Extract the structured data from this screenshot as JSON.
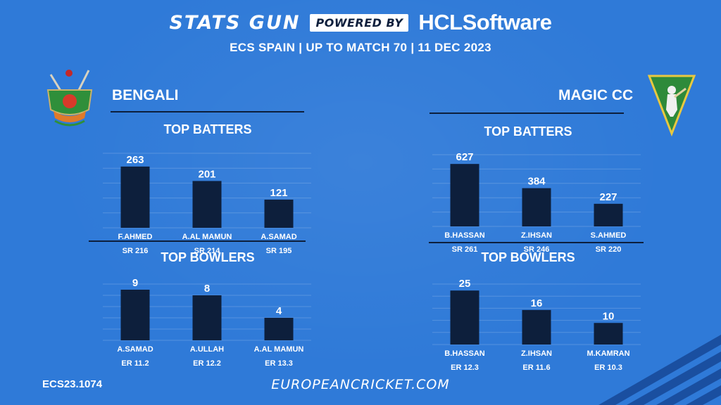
{
  "header": {
    "stats_brand": "STATS GUN",
    "powered_by": "POWERED BY",
    "sponsor": "HCLSoftware",
    "subtitle": "ECS SPAIN | UP TO MATCH 70 | 11 DEC 2023"
  },
  "teams": {
    "left": {
      "name": "BENGALI",
      "logo_icon": "bengali-cricket-club-logo"
    },
    "right": {
      "name": "MAGIC CC",
      "logo_icon": "magic-badalona-cc-logo"
    }
  },
  "footer": {
    "code": "ECS23.1074",
    "url": "EUROPEANCRICKET.COM"
  },
  "colors": {
    "background": "#2f7ad8",
    "bar": "#0d1f3c",
    "text": "#ffffff"
  },
  "chart_data": [
    {
      "id": "left-batters",
      "type": "bar",
      "title": "TOP BATTERS",
      "categories": [
        "F.AHMED",
        "A.AL MAMUN",
        "A.SAMAD"
      ],
      "values": [
        263,
        201,
        121
      ],
      "sublabels": [
        "SR 216",
        "SR 214",
        "SR 195"
      ],
      "data_labels": [
        "263",
        "201",
        "121"
      ],
      "ylim": [
        0,
        320
      ],
      "grid": true
    },
    {
      "id": "right-batters",
      "type": "bar",
      "title": "TOP BATTERS",
      "categories": [
        "B.HASSAN",
        "Z.IHSAN",
        "S.AHMED"
      ],
      "values": [
        627,
        384,
        227
      ],
      "sublabels": [
        "SR 261",
        "SR 246",
        "SR 220"
      ],
      "data_labels": [
        "627",
        "384",
        "227"
      ],
      "ylim": [
        0,
        720
      ],
      "grid": true
    },
    {
      "id": "left-bowlers",
      "type": "bar",
      "title": "TOP BOWLERS",
      "categories": [
        "A.SAMAD",
        "A.ULLAH",
        "A.AL MAMUN"
      ],
      "values": [
        9,
        8,
        4
      ],
      "sublabels": [
        "ER 11.2",
        "ER 12.2",
        "ER 13.3"
      ],
      "data_labels": [
        "9",
        "8",
        "4"
      ],
      "ylim": [
        0,
        10
      ],
      "grid": true
    },
    {
      "id": "right-bowlers",
      "type": "bar",
      "title": "TOP BOWLERS",
      "categories": [
        "B.HASSAN",
        "Z.IHSAN",
        "M.KAMRAN"
      ],
      "values": [
        25,
        16,
        10
      ],
      "sublabels": [
        "ER 12.3",
        "ER 11.6",
        "ER 10.3"
      ],
      "data_labels": [
        "25",
        "16",
        "10"
      ],
      "ylim": [
        0,
        28
      ],
      "grid": true
    }
  ]
}
